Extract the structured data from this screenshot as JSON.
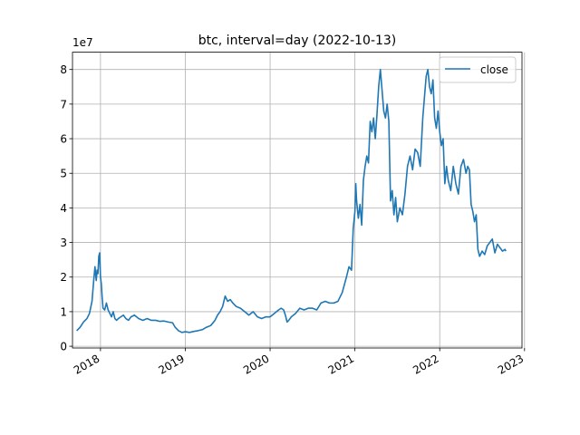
{
  "chart_data": {
    "type": "line",
    "title": "btc, interval=day (2022-10-13)",
    "xlabel": "",
    "ylabel": "",
    "y_offset_label": "1e7",
    "y_scale": 10000000,
    "xlim": [
      2017.67,
      2022.97
    ],
    "ylim": [
      -0.05,
      8.5
    ],
    "grid": true,
    "legend": {
      "position": "top-right",
      "entries": [
        "close"
      ]
    },
    "x_ticks": [
      {
        "value": 2018,
        "label": "2018"
      },
      {
        "value": 2019,
        "label": "2019"
      },
      {
        "value": 2020,
        "label": "2020"
      },
      {
        "value": 2021,
        "label": "2021"
      },
      {
        "value": 2022,
        "label": "2022"
      },
      {
        "value": 2023,
        "label": "2023"
      }
    ],
    "y_ticks": [
      {
        "value": 0,
        "label": "0"
      },
      {
        "value": 1,
        "label": "1"
      },
      {
        "value": 2,
        "label": "2"
      },
      {
        "value": 3,
        "label": "3"
      },
      {
        "value": 4,
        "label": "4"
      },
      {
        "value": 5,
        "label": "5"
      },
      {
        "value": 6,
        "label": "6"
      },
      {
        "value": 7,
        "label": "7"
      },
      {
        "value": 8,
        "label": "8"
      }
    ],
    "series": [
      {
        "name": "close",
        "color": "#1f77b4",
        "x": [
          2017.72,
          2017.76,
          2017.8,
          2017.84,
          2017.87,
          2017.9,
          2017.92,
          2017.935,
          2017.95,
          2017.96,
          2017.97,
          2017.98,
          2017.99,
          2018.0,
          2018.01,
          2018.02,
          2018.03,
          2018.05,
          2018.07,
          2018.09,
          2018.11,
          2018.13,
          2018.15,
          2018.17,
          2018.19,
          2018.21,
          2018.24,
          2018.27,
          2018.3,
          2018.33,
          2018.36,
          2018.4,
          2018.45,
          2018.5,
          2018.55,
          2018.6,
          2018.65,
          2018.7,
          2018.75,
          2018.8,
          2018.85,
          2018.88,
          2018.92,
          2018.96,
          2019.0,
          2019.05,
          2019.1,
          2019.15,
          2019.2,
          2019.25,
          2019.3,
          2019.35,
          2019.38,
          2019.41,
          2019.44,
          2019.47,
          2019.5,
          2019.53,
          2019.56,
          2019.6,
          2019.65,
          2019.7,
          2019.75,
          2019.8,
          2019.85,
          2019.9,
          2019.95,
          2020.0,
          2020.05,
          2020.1,
          2020.13,
          2020.16,
          2020.18,
          2020.2,
          2020.22,
          2020.25,
          2020.3,
          2020.35,
          2020.4,
          2020.45,
          2020.5,
          2020.55,
          2020.6,
          2020.65,
          2020.7,
          2020.75,
          2020.8,
          2020.85,
          2020.9,
          2020.93,
          2020.96,
          2020.98,
          2021.0,
          2021.01,
          2021.02,
          2021.04,
          2021.06,
          2021.08,
          2021.1,
          2021.12,
          2021.14,
          2021.16,
          2021.18,
          2021.2,
          2021.22,
          2021.24,
          2021.26,
          2021.28,
          2021.3,
          2021.32,
          2021.34,
          2021.36,
          2021.38,
          2021.4,
          2021.42,
          2021.44,
          2021.46,
          2021.48,
          2021.5,
          2021.53,
          2021.56,
          2021.59,
          2021.62,
          2021.65,
          2021.68,
          2021.71,
          2021.74,
          2021.77,
          2021.8,
          2021.82,
          2021.84,
          2021.86,
          2021.88,
          2021.9,
          2021.92,
          2021.94,
          2021.96,
          2021.98,
          2022.0,
          2022.02,
          2022.04,
          2022.06,
          2022.08,
          2022.1,
          2022.13,
          2022.16,
          2022.19,
          2022.22,
          2022.25,
          2022.28,
          2022.31,
          2022.33,
          2022.35,
          2022.37,
          2022.39,
          2022.41,
          2022.43,
          2022.45,
          2022.47,
          2022.5,
          2022.53,
          2022.56,
          2022.59,
          2022.62,
          2022.65,
          2022.68,
          2022.71,
          2022.74,
          2022.77,
          2022.78
        ],
        "values": [
          0.45,
          0.55,
          0.7,
          0.8,
          0.95,
          1.3,
          1.9,
          2.3,
          1.9,
          2.2,
          2.1,
          2.6,
          2.7,
          2.0,
          1.8,
          1.4,
          1.1,
          1.05,
          1.25,
          1.05,
          0.95,
          0.85,
          1.0,
          0.8,
          0.75,
          0.8,
          0.85,
          0.9,
          0.8,
          0.75,
          0.85,
          0.9,
          0.8,
          0.75,
          0.8,
          0.75,
          0.75,
          0.72,
          0.73,
          0.7,
          0.68,
          0.55,
          0.45,
          0.4,
          0.42,
          0.4,
          0.43,
          0.45,
          0.48,
          0.55,
          0.6,
          0.75,
          0.9,
          1.0,
          1.15,
          1.45,
          1.3,
          1.35,
          1.25,
          1.15,
          1.1,
          1.0,
          0.9,
          1.0,
          0.85,
          0.8,
          0.85,
          0.85,
          0.95,
          1.05,
          1.1,
          1.05,
          0.9,
          0.7,
          0.75,
          0.85,
          0.95,
          1.1,
          1.05,
          1.1,
          1.1,
          1.05,
          1.25,
          1.3,
          1.25,
          1.25,
          1.3,
          1.55,
          2.0,
          2.3,
          2.2,
          3.4,
          3.9,
          4.7,
          4.2,
          3.7,
          4.1,
          3.5,
          4.8,
          5.2,
          5.5,
          5.3,
          6.5,
          6.2,
          6.6,
          6.0,
          6.7,
          7.5,
          8.0,
          7.4,
          6.8,
          6.6,
          7.0,
          6.5,
          4.2,
          4.5,
          3.8,
          4.3,
          3.6,
          4.0,
          3.8,
          4.4,
          5.2,
          5.5,
          5.1,
          5.7,
          5.6,
          5.2,
          6.6,
          7.2,
          7.8,
          8.0,
          7.5,
          7.3,
          7.7,
          6.6,
          6.3,
          6.8,
          6.2,
          5.8,
          6.0,
          4.7,
          5.2,
          4.8,
          4.5,
          5.2,
          4.7,
          4.4,
          5.2,
          5.4,
          5.0,
          5.2,
          5.1,
          4.1,
          3.9,
          3.6,
          3.8,
          2.8,
          2.6,
          2.75,
          2.65,
          2.9,
          3.0,
          3.1,
          2.7,
          2.95,
          2.85,
          2.75,
          2.8,
          2.75
        ]
      }
    ]
  }
}
